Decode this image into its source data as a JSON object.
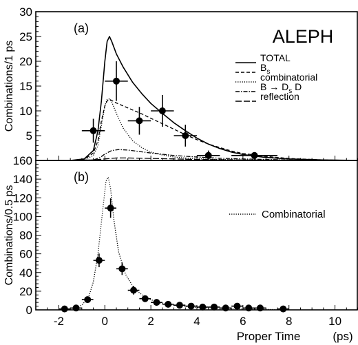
{
  "figure": {
    "x_axis_label": "Proper Time",
    "x_axis_unit": "(ps)"
  },
  "chart_data": [
    {
      "type": "line",
      "panel_label": "(a)",
      "experiment_label": "ALEPH",
      "ylabel": "Combinations/1 ps",
      "xlabel": "Proper Time (ps)",
      "xlim": [
        -3,
        11
      ],
      "ylim": [
        0,
        30
      ],
      "x_ticks": [
        -2,
        0,
        2,
        4,
        6,
        8,
        10
      ],
      "y_ticks": [
        5,
        10,
        15,
        20,
        25,
        30
      ],
      "legend_position": "top-right",
      "legend": [
        {
          "label": "TOTAL",
          "style": "solid"
        },
        {
          "label": "B",
          "subscript": "s",
          "style": "dashed"
        },
        {
          "label": "combinatorial",
          "style": "dotted"
        },
        {
          "label": "B",
          "arrow": "→",
          "after_arrow": "D",
          "after_subscript": "s",
          "suffix": " D",
          "style": "dashdot"
        },
        {
          "label": "reflection",
          "style": "long-dash"
        }
      ],
      "series": [
        {
          "name": "TOTAL",
          "style": "solid",
          "x": [
            -1.5,
            -0.9,
            -0.5,
            -0.3,
            -0.15,
            0,
            0.1,
            0.2,
            0.3,
            0.5,
            0.8,
            1.2,
            1.6,
            2,
            2.5,
            3,
            3.5,
            4,
            4.5,
            5,
            5.5,
            6,
            7,
            8,
            9.5,
            11
          ],
          "values": [
            0,
            0.3,
            2,
            6,
            12,
            20,
            24,
            25,
            24,
            21.5,
            18.8,
            15.8,
            13.5,
            11.5,
            9.5,
            7.6,
            6,
            4.5,
            3.3,
            2.4,
            1.7,
            1.2,
            0.6,
            0.3,
            0.1,
            0
          ]
        },
        {
          "name": "B",
          "style": "dashed",
          "x": [
            -1.5,
            -0.9,
            -0.5,
            -0.3,
            -0.15,
            0,
            0.1,
            0.2,
            0.3,
            0.5,
            0.8,
            1.2,
            1.6,
            2,
            2.5,
            3,
            3.5,
            4,
            4.5,
            5,
            5.5,
            6,
            7,
            8,
            9.5,
            11
          ],
          "values": [
            0,
            0.2,
            1.5,
            4,
            8,
            11,
            12,
            12.3,
            12.1,
            11.6,
            11,
            10.2,
            9.4,
            8.5,
            7.4,
            6.3,
            5.2,
            4.2,
            3.3,
            2.6,
            1.9,
            1.4,
            0.8,
            0.4,
            0.1,
            0
          ]
        },
        {
          "name": "combinatorial",
          "style": "dotted",
          "x": [
            -1.5,
            -0.9,
            -0.5,
            -0.3,
            -0.15,
            0,
            0.1,
            0.2,
            0.3,
            0.5,
            0.8,
            1.2,
            1.6,
            2,
            2.5,
            3,
            3.5,
            4,
            4.5,
            5,
            5.5,
            6,
            7,
            8,
            9.5,
            11
          ],
          "values": [
            0,
            0.1,
            1,
            3,
            7,
            11,
            12.3,
            12.4,
            11.8,
            9.5,
            6.5,
            4,
            2.6,
            1.7,
            1.1,
            0.7,
            0.5,
            0.35,
            0.25,
            0.2,
            0.15,
            0.1,
            0.05,
            0.02,
            0,
            0
          ]
        },
        {
          "name": "B → D D",
          "style": "dashdot",
          "x": [
            -1.5,
            -0.5,
            -0.2,
            0,
            0.3,
            0.6,
            1,
            1.5,
            2,
            3,
            4,
            5,
            6,
            8,
            11
          ],
          "values": [
            0,
            0.1,
            0.6,
            1.3,
            2,
            2.2,
            2.1,
            1.8,
            1.5,
            1,
            0.7,
            0.45,
            0.3,
            0.1,
            0
          ]
        },
        {
          "name": "reflection",
          "style": "long-dash",
          "x": [
            -1.5,
            -0.5,
            0,
            0.5,
            1,
            2,
            3,
            4,
            6,
            8,
            11
          ],
          "values": [
            0,
            0.1,
            0.3,
            0.5,
            0.5,
            0.4,
            0.3,
            0.2,
            0.1,
            0.05,
            0
          ]
        }
      ],
      "data_points": [
        {
          "x": -0.5,
          "y": 6,
          "x_err": 0.5,
          "y_err": 2.4
        },
        {
          "x": 0.5,
          "y": 16,
          "x_err": 0.5,
          "y_err": 4
        },
        {
          "x": 1.5,
          "y": 8,
          "x_err": 0.5,
          "y_err": 2.8
        },
        {
          "x": 2.5,
          "y": 10,
          "x_err": 0.5,
          "y_err": 3.2
        },
        {
          "x": 3.5,
          "y": 5,
          "x_err": 0.5,
          "y_err": 2.2
        },
        {
          "x": 4.5,
          "y": 1,
          "x_err": 0.5,
          "y_err": 1
        },
        {
          "x": 6.5,
          "y": 1,
          "x_err": 1,
          "y_err": 0.5
        }
      ]
    },
    {
      "type": "line",
      "panel_label": "(b)",
      "ylabel": "Combinations/0.5 ps",
      "xlabel": "Proper Time (ps)",
      "xlim": [
        -3,
        11
      ],
      "ylim": [
        0,
        160
      ],
      "x_ticks": [
        -2,
        0,
        2,
        4,
        6,
        8,
        10
      ],
      "y_ticks": [
        0,
        20,
        40,
        60,
        80,
        100,
        120,
        140,
        160
      ],
      "legend_position": "middle-right",
      "legend": [
        {
          "label": "Combinatorial",
          "style": "dotted"
        }
      ],
      "series": [
        {
          "name": "Combinatorial",
          "style": "dotted",
          "x": [
            -2,
            -1.5,
            -1,
            -0.7,
            -0.5,
            -0.3,
            -0.1,
            0.05,
            0.15,
            0.25,
            0.4,
            0.6,
            0.9,
            1.3,
            1.8,
            2.3,
            3,
            4,
            5,
            6,
            7,
            8
          ],
          "values": [
            0,
            1,
            5,
            14,
            30,
            60,
            105,
            138,
            142,
            130,
            95,
            62,
            38,
            22,
            13,
            8,
            5,
            2.5,
            1.5,
            1,
            0.5,
            0.2
          ]
        }
      ],
      "data_points": [
        {
          "x": -1.75,
          "y": 1,
          "x_err": 0.25,
          "y_err": 1
        },
        {
          "x": -1.25,
          "y": 2,
          "x_err": 0.25,
          "y_err": 1.4
        },
        {
          "x": -0.75,
          "y": 11,
          "x_err": 0.25,
          "y_err": 3.3
        },
        {
          "x": -0.25,
          "y": 53,
          "x_err": 0.25,
          "y_err": 7.3
        },
        {
          "x": 0.25,
          "y": 109,
          "x_err": 0.25,
          "y_err": 10.4
        },
        {
          "x": 0.75,
          "y": 44,
          "x_err": 0.25,
          "y_err": 6.6
        },
        {
          "x": 1.25,
          "y": 21,
          "x_err": 0.25,
          "y_err": 4.6
        },
        {
          "x": 1.75,
          "y": 12,
          "x_err": 0.25,
          "y_err": 3.5
        },
        {
          "x": 2.25,
          "y": 8,
          "x_err": 0.25,
          "y_err": 2.8
        },
        {
          "x": 2.75,
          "y": 6,
          "x_err": 0.25,
          "y_err": 2.4
        },
        {
          "x": 3.25,
          "y": 5,
          "x_err": 0.25,
          "y_err": 2.2
        },
        {
          "x": 3.75,
          "y": 4,
          "x_err": 0.25,
          "y_err": 2
        },
        {
          "x": 4.25,
          "y": 3,
          "x_err": 0.25,
          "y_err": 1.7
        },
        {
          "x": 4.75,
          "y": 3,
          "x_err": 0.25,
          "y_err": 1.7
        },
        {
          "x": 5.25,
          "y": 2,
          "x_err": 0.25,
          "y_err": 1.4
        },
        {
          "x": 5.75,
          "y": 4,
          "x_err": 0.25,
          "y_err": 2
        },
        {
          "x": 6.25,
          "y": 2,
          "x_err": 0.25,
          "y_err": 1.4
        },
        {
          "x": 6.75,
          "y": 2,
          "x_err": 0.25,
          "y_err": 1.4
        },
        {
          "x": 7.75,
          "y": 1,
          "x_err": 0.25,
          "y_err": 1
        }
      ]
    }
  ]
}
